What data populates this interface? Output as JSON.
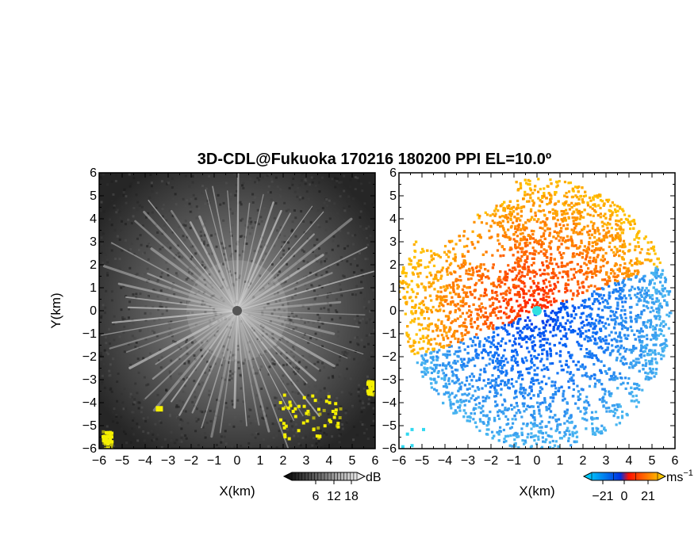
{
  "title": "3D-CDL@Fukuoka 170216 180200 PPI EL=10.0º",
  "chart_data": [
    {
      "type": "heatmap",
      "name": "reflectivity-ppi",
      "xlabel": "X(km)",
      "ylabel": "Y(km)",
      "xlim": [
        -6,
        6
      ],
      "ylim": [
        -6,
        6
      ],
      "xticks": [
        "−6",
        "−5",
        "−4",
        "−3",
        "−2",
        "−1",
        "0",
        "1",
        "2",
        "3",
        "4",
        "5",
        "6"
      ],
      "yticks": [
        "6",
        "5",
        "4",
        "3",
        "2",
        "1",
        "0",
        "−1",
        "−2",
        "−3",
        "−4",
        "−5",
        "−6"
      ],
      "colorbar": {
        "label": "dB",
        "ticks": [
          "6",
          "12",
          "18"
        ],
        "range": [
          0,
          21
        ],
        "colormap": "grayscale, high values yellow"
      },
      "colors": {
        "low": "#1e1e1e",
        "mid": "#8a8a8a",
        "high": "#e6e6e6",
        "highlight": "#f5f000"
      },
      "description_regions": [
        {
          "label": "high echo",
          "x_range": [
            1.8,
            4.6
          ],
          "y_range": [
            -5.6,
            -3.6
          ]
        },
        {
          "label": "high echo",
          "x_range": [
            5.6,
            6.0
          ],
          "y_range": [
            -3.6,
            -3.0
          ]
        },
        {
          "label": "high echo",
          "x_range": [
            -5.9,
            -5.5
          ],
          "y_range": [
            -6.0,
            -5.2
          ]
        }
      ]
    },
    {
      "type": "heatmap",
      "name": "doppler-velocity-ppi",
      "xlabel": "X(km)",
      "xlim": [
        -6,
        6
      ],
      "ylim": [
        -6,
        6
      ],
      "xticks": [
        "−6",
        "−5",
        "−4",
        "−3",
        "−2",
        "−1",
        "0",
        "1",
        "2",
        "3",
        "4",
        "5",
        "6"
      ],
      "yticks": [
        "6",
        "5",
        "4",
        "3",
        "2",
        "1",
        "0",
        "−1",
        "−2",
        "−3",
        "−4",
        "−5",
        "−6"
      ],
      "colorbar": {
        "label": "ms",
        "label_superscript": "−1",
        "ticks": [
          "−21",
          "0",
          "21"
        ],
        "range": [
          -21,
          21
        ],
        "colormap": "cyan-blue (negative) / red-orange-yellow (positive)"
      },
      "colors": {
        "neg_far": "#00c8f0",
        "neg_near": "#0040e0",
        "pos_near": "#ff2000",
        "pos_far": "#ffb000",
        "center": "#30e0e0"
      }
    }
  ]
}
